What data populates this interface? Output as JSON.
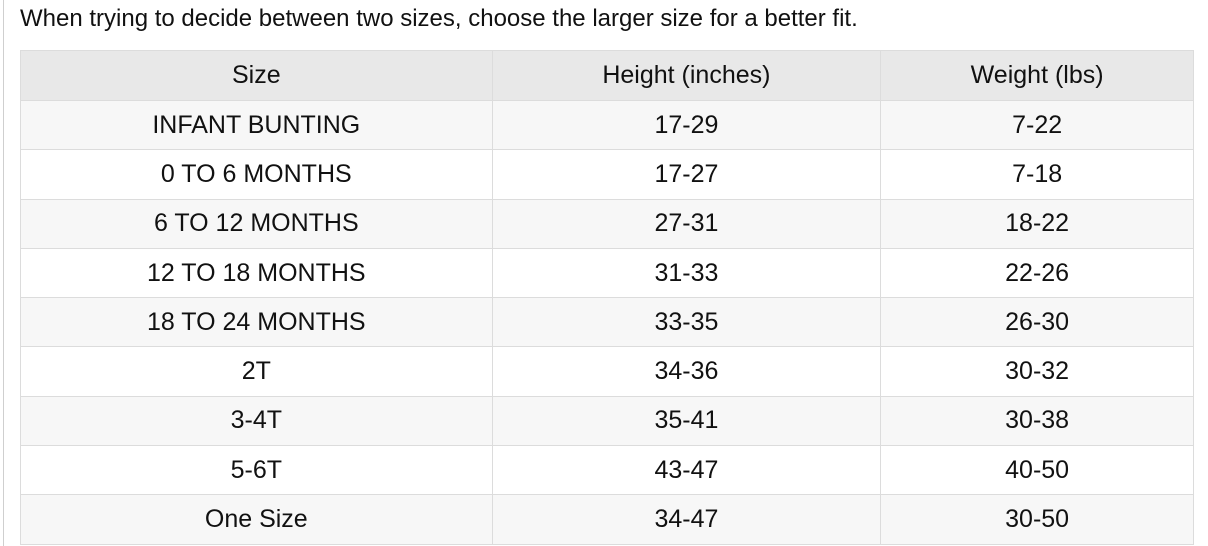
{
  "intro": "When trying to decide between two sizes, choose the larger size for a better fit.",
  "table": {
    "headers": [
      "Size",
      "Height (inches)",
      "Weight (lbs)"
    ],
    "rows": [
      [
        "INFANT BUNTING",
        "17-29",
        "7-22"
      ],
      [
        "0 TO 6 MONTHS",
        "17-27",
        "7-18"
      ],
      [
        "6 TO 12 MONTHS",
        "27-31",
        "18-22"
      ],
      [
        "12 TO 18 MONTHS",
        "31-33",
        "22-26"
      ],
      [
        "18 TO 24 MONTHS",
        "33-35",
        "26-30"
      ],
      [
        "2T",
        "34-36",
        "30-32"
      ],
      [
        "3-4T",
        "35-41",
        "30-38"
      ],
      [
        "5-6T",
        "43-47",
        "40-50"
      ],
      [
        "One Size",
        "34-47",
        "30-50"
      ]
    ]
  }
}
